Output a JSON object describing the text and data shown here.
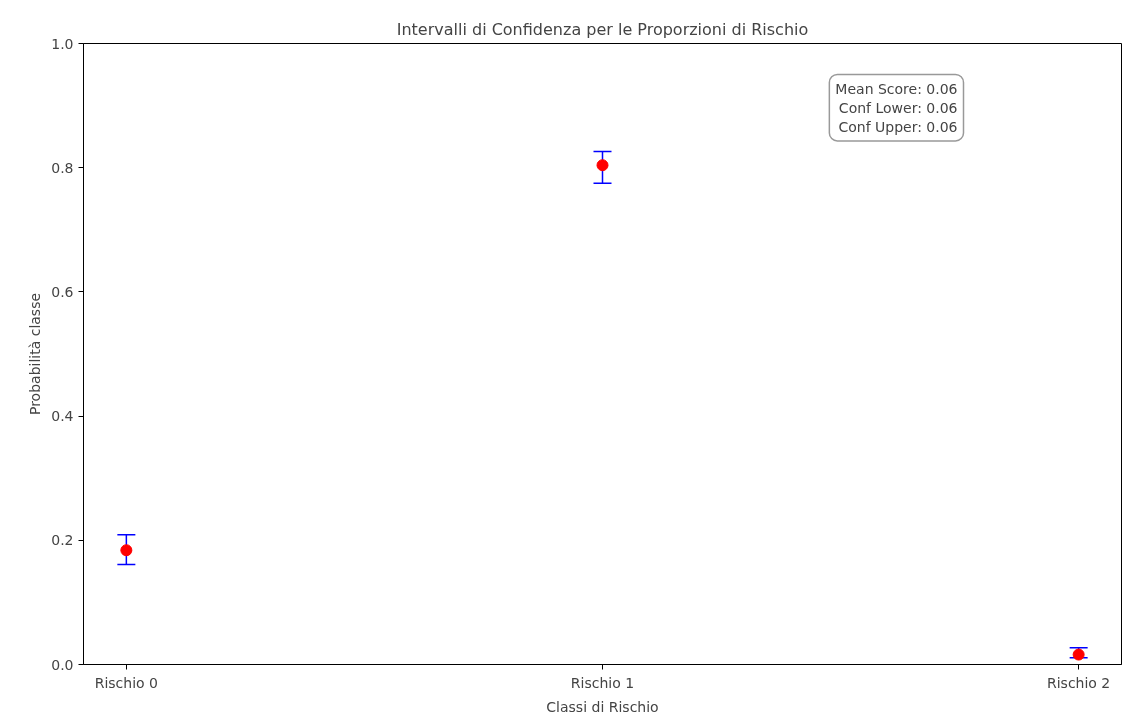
{
  "chart_data": {
    "type": "scatter",
    "title": "Intervalli di Confidenza per le Proporzioni di Rischio",
    "xlabel": "Classi di Rischio",
    "ylabel": "Probabilità classe",
    "categories": [
      "Rischio 0",
      "Rischio 1",
      "Rischio 2"
    ],
    "series": [
      {
        "color": "#ff0000",
        "values": [
          0.184,
          0.804,
          0.016
        ],
        "errors": [
          [
            0.161,
            0.209
          ],
          [
            0.775,
            0.826
          ],
          [
            0.011,
            0.027
          ]
        ]
      }
    ],
    "ylim": [
      0,
      1
    ],
    "yticks": [
      {
        "value": 0,
        "label": "0.0"
      },
      {
        "value": 0.2,
        "label": "0.2"
      },
      {
        "value": 0.4,
        "label": "0.4"
      },
      {
        "value": 0.6,
        "label": "0.6"
      },
      {
        "value": 0.8,
        "label": "0.8"
      },
      {
        "value": 1,
        "label": "1.0"
      }
    ],
    "grid": false,
    "marker": "circle",
    "annotations": [
      "Mean Score: 0.06\nConf Lower: 0.06\nConf Upper: 0.06"
    ]
  }
}
